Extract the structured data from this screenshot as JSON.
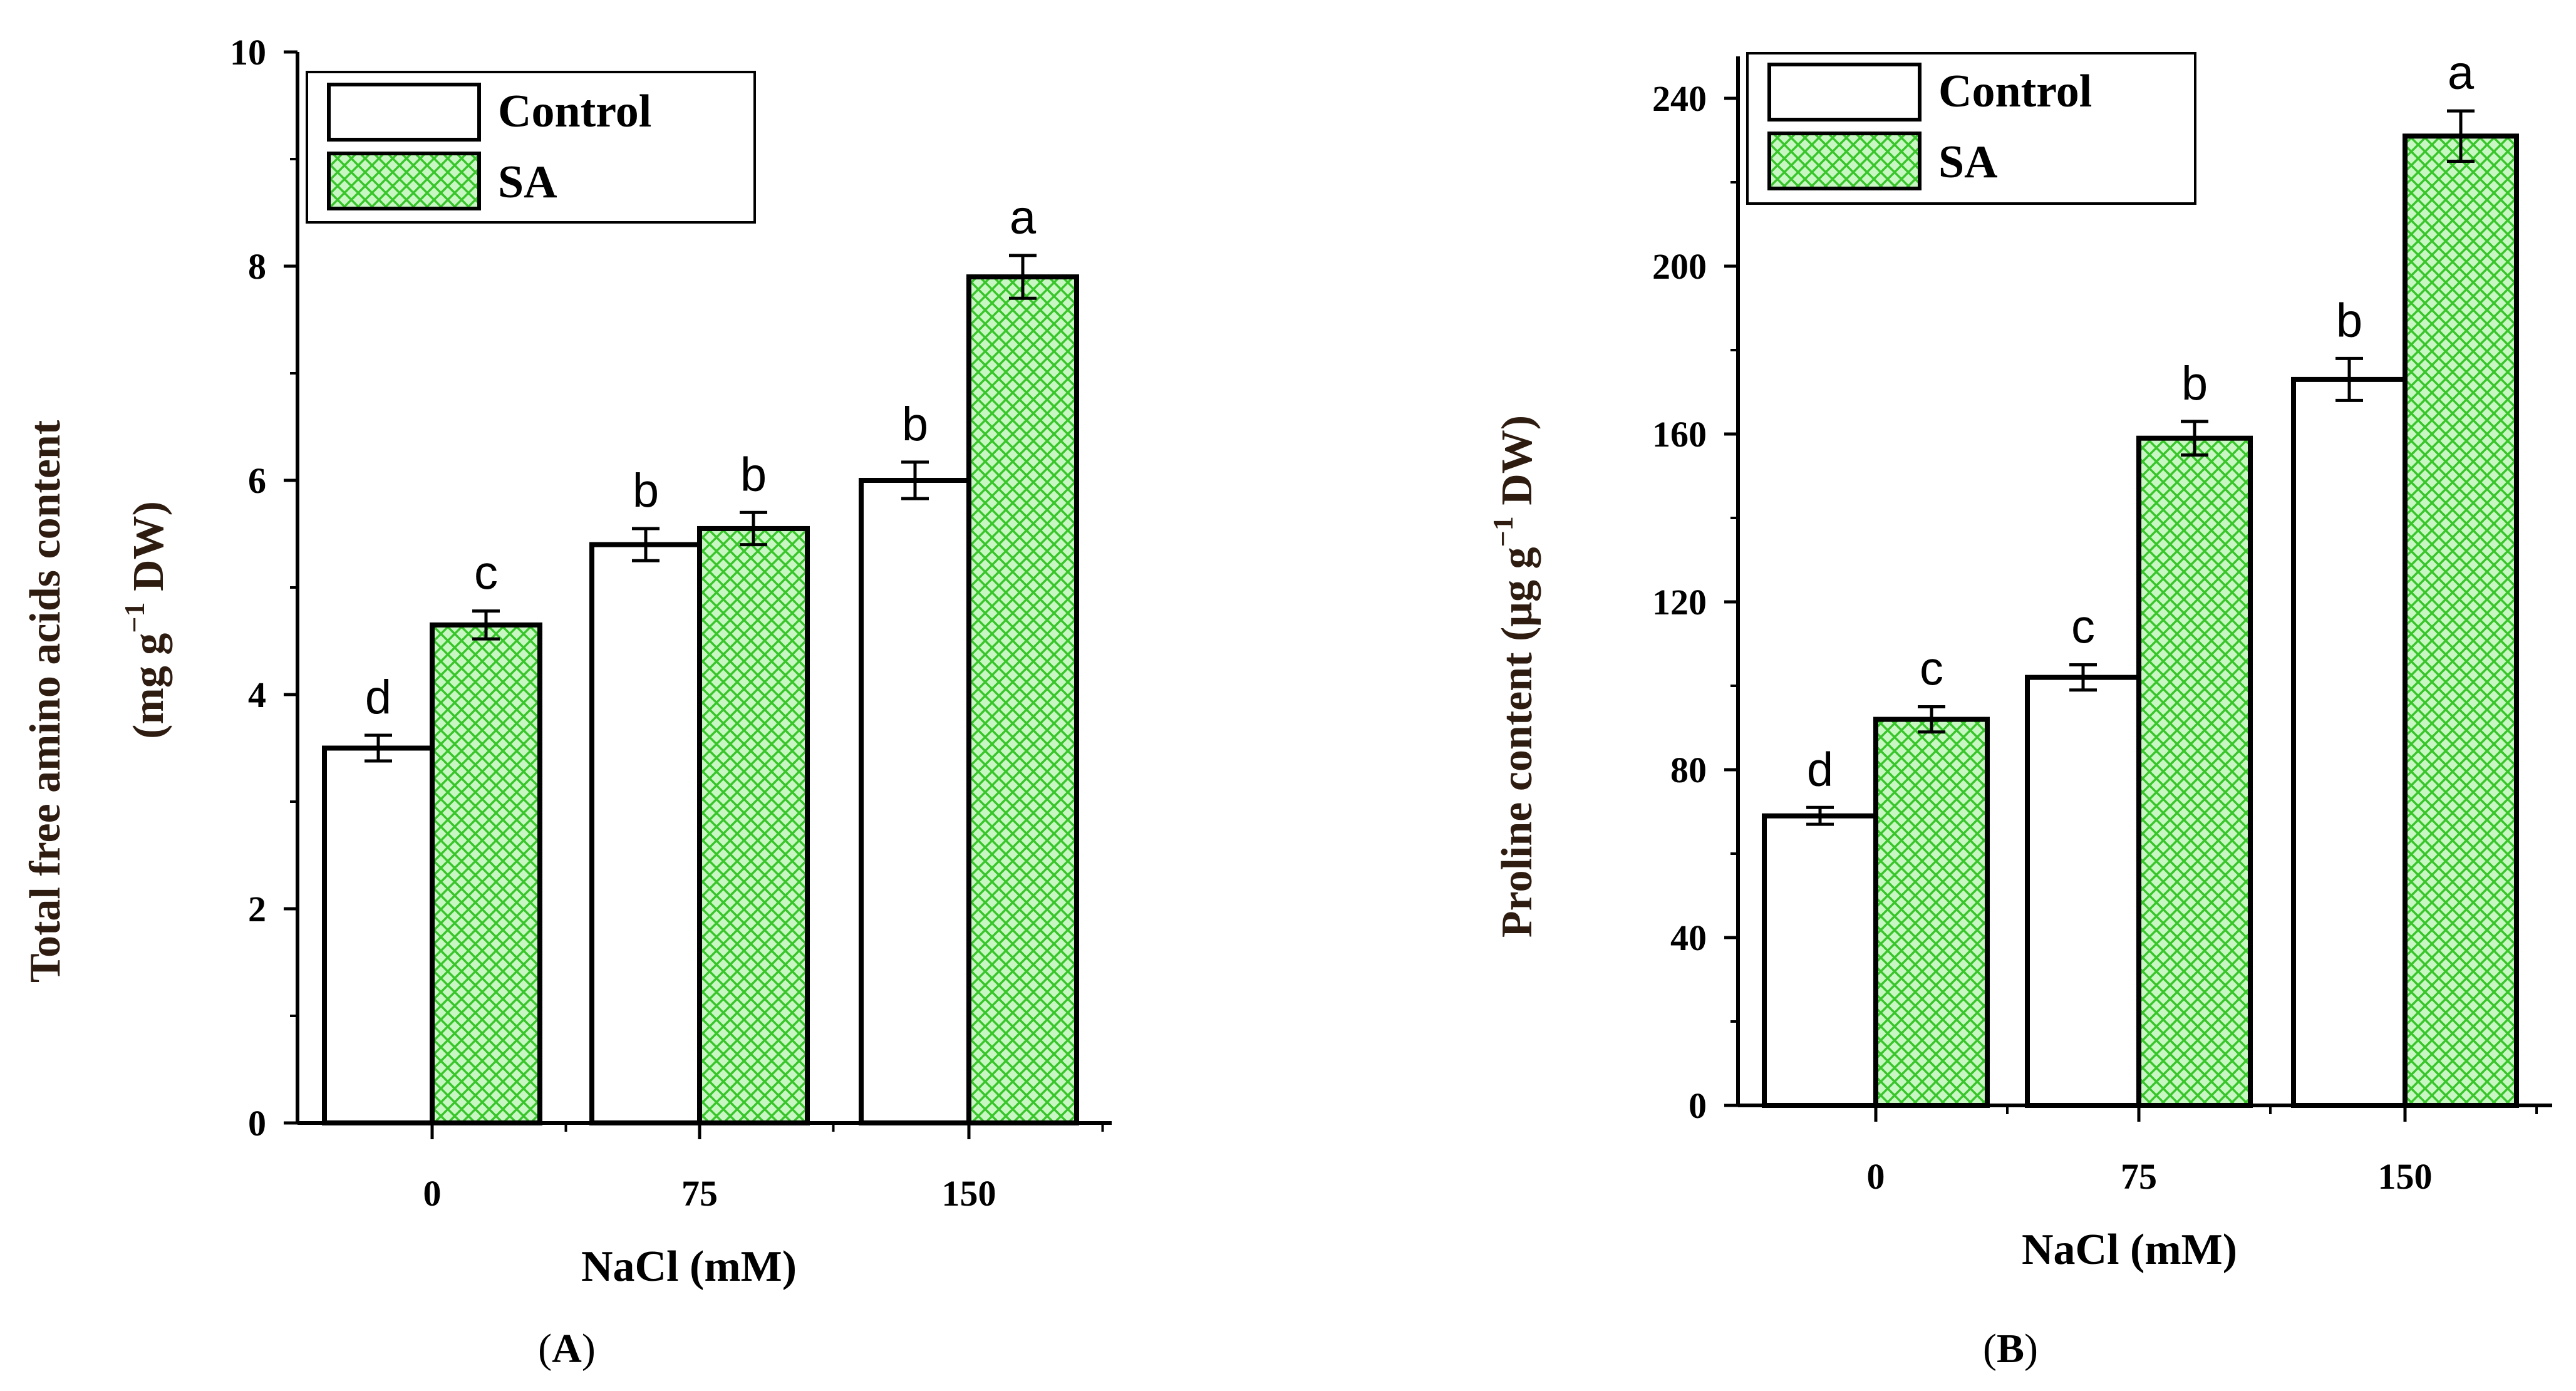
{
  "chart_data": [
    {
      "type": "bar",
      "panel_label": "A",
      "categories": [
        "0",
        "75",
        "150"
      ],
      "xlabel": "NaCl (mM)",
      "ylabel": "Total free amino acids content",
      "ylabel_unit_pre": "(mg g",
      "ylabel_unit_sup": "−1",
      "ylabel_unit_post": " DW)",
      "ylim": [
        0,
        10
      ],
      "yticks": [
        "0",
        "2",
        "4",
        "6",
        "8",
        "10"
      ],
      "legend_position": "top-left",
      "series": [
        {
          "name": "Control",
          "values": [
            3.5,
            5.4,
            6.0
          ],
          "errors": [
            0.12,
            0.15,
            0.17
          ],
          "labels": [
            "d",
            "b",
            "b"
          ],
          "style": "white"
        },
        {
          "name": "SA",
          "values": [
            4.65,
            5.55,
            7.9
          ],
          "errors": [
            0.13,
            0.15,
            0.2
          ],
          "labels": [
            "c",
            "b",
            "a"
          ],
          "style": "green-crosshatch"
        }
      ]
    },
    {
      "type": "bar",
      "panel_label": "B",
      "categories": [
        "0",
        "75",
        "150"
      ],
      "xlabel": "NaCl (mM)",
      "ylabel": "Proline content",
      "ylabel_unit_pre": "(μg g",
      "ylabel_unit_sup": "−1",
      "ylabel_unit_post": " DW)",
      "ylim": [
        0,
        250
      ],
      "yticks": [
        "0",
        "40",
        "80",
        "120",
        "160",
        "200",
        "240"
      ],
      "legend_position": "top-left",
      "series": [
        {
          "name": "Control",
          "values": [
            69,
            102,
            173
          ],
          "errors": [
            2,
            3,
            5
          ],
          "labels": [
            "d",
            "c",
            "b"
          ],
          "style": "white"
        },
        {
          "name": "SA",
          "values": [
            92,
            159,
            231
          ],
          "errors": [
            3,
            4,
            6
          ],
          "labels": [
            "c",
            "b",
            "a"
          ],
          "style": "green-crosshatch"
        }
      ]
    }
  ],
  "colors": {
    "sa_fill": "#c9f7c4",
    "sa_hatch": "#38c62a",
    "control_fill": "#ffffff",
    "stroke": "#000000"
  }
}
